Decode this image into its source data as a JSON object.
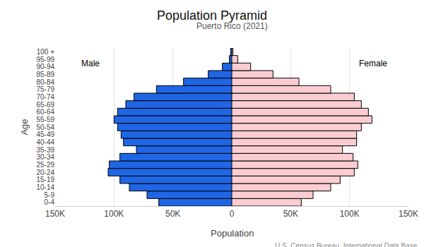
{
  "chart_data": {
    "type": "bar",
    "orientation": "horizontal",
    "title": "Population Pyramid",
    "subtitle": "Puerto Rico (2021)",
    "x_label": "Population",
    "y_label": "Age",
    "source": "U.S. Census Bureau, International Data Base",
    "categories": [
      "0-4",
      "5-9",
      "10-14",
      "15-19",
      "20-24",
      "25-29",
      "30-34",
      "35-39",
      "40-44",
      "45-49",
      "50-54",
      "55-59",
      "60-64",
      "65-69",
      "70-74",
      "75-79",
      "80-84",
      "85-89",
      "90-94",
      "95-99",
      "100 +"
    ],
    "series": [
      {
        "name": "Male",
        "color": "#1f66e5",
        "values": [
          62000,
          72000,
          87000,
          95000,
          105000,
          104000,
          95000,
          81000,
          92000,
          94000,
          97000,
          100000,
          97000,
          90000,
          83000,
          64000,
          41000,
          20000,
          8000,
          2000,
          1000
        ]
      },
      {
        "name": "Female",
        "color": "#f9cdd1",
        "values": [
          59000,
          69000,
          84000,
          92000,
          104000,
          107000,
          103000,
          94000,
          106000,
          106000,
          110000,
          119000,
          116000,
          110000,
          104000,
          84000,
          57000,
          35000,
          16000,
          5000,
          1000
        ]
      }
    ],
    "xlim": [
      0,
      150000
    ],
    "xticks": [
      0,
      {
        "value": 50000,
        "label": "50K"
      },
      {
        "value": 100000,
        "label": "100K"
      },
      {
        "value": 150000,
        "label": "150K"
      }
    ],
    "grid": true
  }
}
